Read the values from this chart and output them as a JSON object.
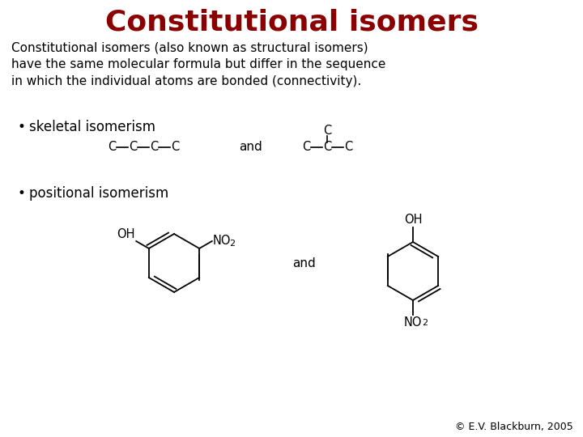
{
  "title": "Constitutional isomers",
  "title_color": "#8B0000",
  "title_fontsize": 26,
  "body_text": "Constitutional isomers (also known as structural isomers)\nhave the same molecular formula but differ in the sequence\nin which the individual atoms are bonded (connectivity).",
  "bullet1": "skeletal isomerism",
  "bullet2": "positional isomerism",
  "and_text": "and",
  "copyright": "© E.V. Blackburn, 2005",
  "bg_color": "#ffffff",
  "text_color": "#000000",
  "font_family": "DejaVu Sans"
}
